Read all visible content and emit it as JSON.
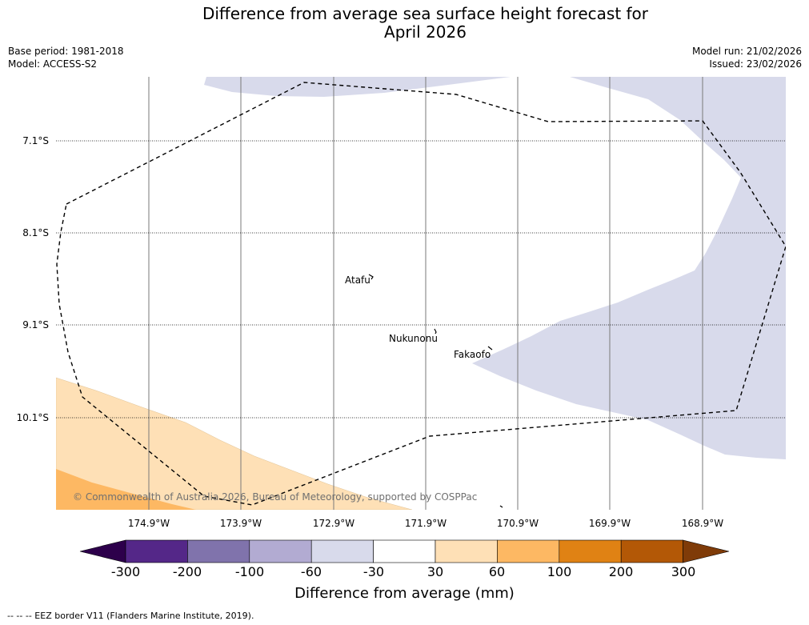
{
  "title_line1": "Difference from average sea surface height forecast for",
  "title_line2": "April 2026",
  "base_period": "Base period: 1981-2018",
  "model": "Model: ACCESS-S2",
  "model_run": "Model run: 21/02/2026",
  "issued": "Issued: 23/02/2026",
  "map": {
    "lat_labels": [
      "7.1°S",
      "8.1°S",
      "9.1°S",
      "10.1°S"
    ],
    "lon_labels": [
      "174.9°W",
      "173.9°W",
      "172.9°W",
      "171.9°W",
      "170.9°W",
      "169.9°W",
      "168.9°W"
    ],
    "places": [
      "Atafu",
      "Nukunonu",
      "Fakaofo"
    ],
    "copyright": "© Commonwealth of Australia 2026, Bureau of Meteorology, supported by COSPPac"
  },
  "colorbar": {
    "title": "Difference from average (mm)",
    "ticks": [
      "-300",
      "-200",
      "-100",
      "-60",
      "-30",
      "30",
      "60",
      "100",
      "200",
      "300"
    ],
    "colors": [
      "#2d004b",
      "#542788",
      "#8073ac",
      "#b2abd2",
      "#d8daeb",
      "#ffffff",
      "#fee0b6",
      "#fdb863",
      "#e08214",
      "#b35806",
      "#7f3b08"
    ]
  },
  "footnote": "-- -- -- EEZ border V11 (Flanders Marine Institute, 2019)."
}
